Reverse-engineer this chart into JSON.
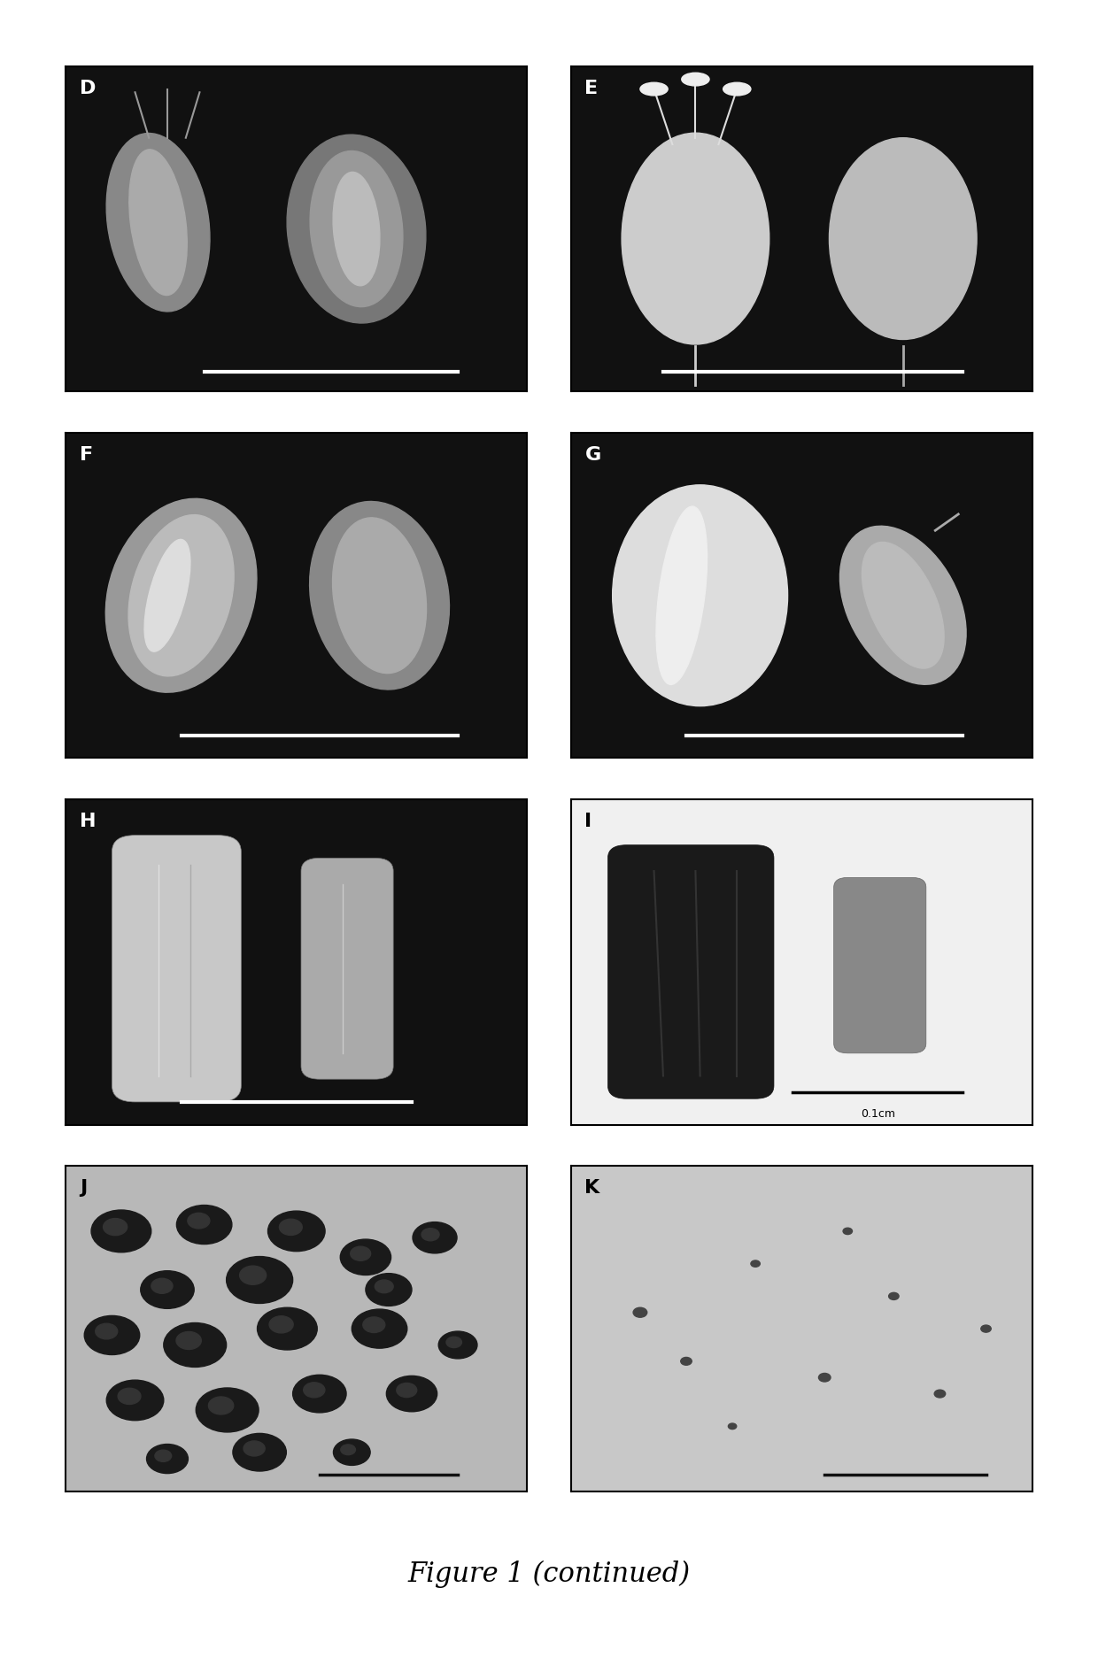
{
  "title": "Figure 1 (continued)",
  "title_fontsize": 22,
  "title_style": "italic",
  "background_color": "#ffffff",
  "panels": {
    "D": {
      "label": "D",
      "bg_color": "#000000",
      "label_color": "#ffffff",
      "has_scalebar": true,
      "scalebar_color": "#ffffff"
    },
    "E": {
      "label": "E",
      "bg_color": "#000000",
      "label_color": "#ffffff",
      "has_scalebar": true,
      "scalebar_color": "#ffffff"
    },
    "F": {
      "label": "F",
      "bg_color": "#000000",
      "label_color": "#ffffff",
      "has_scalebar": true,
      "scalebar_color": "#ffffff"
    },
    "G": {
      "label": "G",
      "bg_color": "#000000",
      "label_color": "#ffffff",
      "has_scalebar": true,
      "scalebar_color": "#ffffff"
    },
    "H": {
      "label": "H",
      "bg_color": "#000000",
      "label_color": "#ffffff",
      "has_scalebar": true,
      "scalebar_color": "#ffffff"
    },
    "I": {
      "label": "I",
      "bg_color": "#ffffff",
      "label_color": "#000000",
      "has_scalebar": true,
      "scalebar_color": "#000000",
      "scalebar_text": "0.1cm"
    },
    "J": {
      "label": "J",
      "bg_color": "#c8c8c8",
      "label_color": "#000000",
      "has_scalebar": true,
      "scalebar_color": "#000000"
    },
    "K": {
      "label": "K",
      "bg_color": "#d8d8d8",
      "label_color": "#000000",
      "has_scalebar": true,
      "scalebar_color": "#000000"
    }
  },
  "panel_label_fontsize": 16,
  "panel_label_fontweight": "bold"
}
